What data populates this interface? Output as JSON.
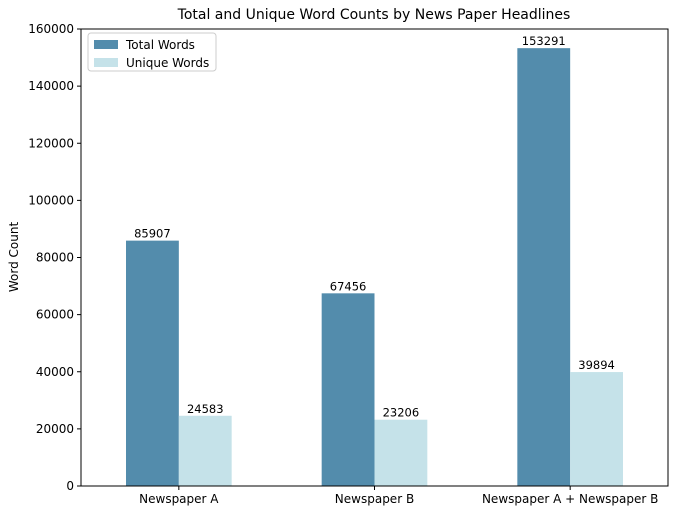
{
  "chart_data": {
    "type": "bar",
    "title": "Total and Unique Word Counts by News Paper Headlines",
    "xlabel": "",
    "ylabel": "Word Count",
    "categories": [
      "Newspaper A",
      "Newspaper B",
      "Newspaper A + Newspaper B"
    ],
    "series": [
      {
        "name": "Total Words",
        "values": [
          85907,
          67456,
          153291
        ],
        "color": "#538cac"
      },
      {
        "name": "Unique Words",
        "values": [
          24583,
          23206,
          39894
        ],
        "color": "#c5e2e9"
      }
    ],
    "ylim": [
      0,
      160000
    ],
    "yticks": [
      0,
      20000,
      40000,
      60000,
      80000,
      100000,
      120000,
      140000,
      160000
    ],
    "grid": false,
    "legend_position": "top-left",
    "data_labels": true
  }
}
